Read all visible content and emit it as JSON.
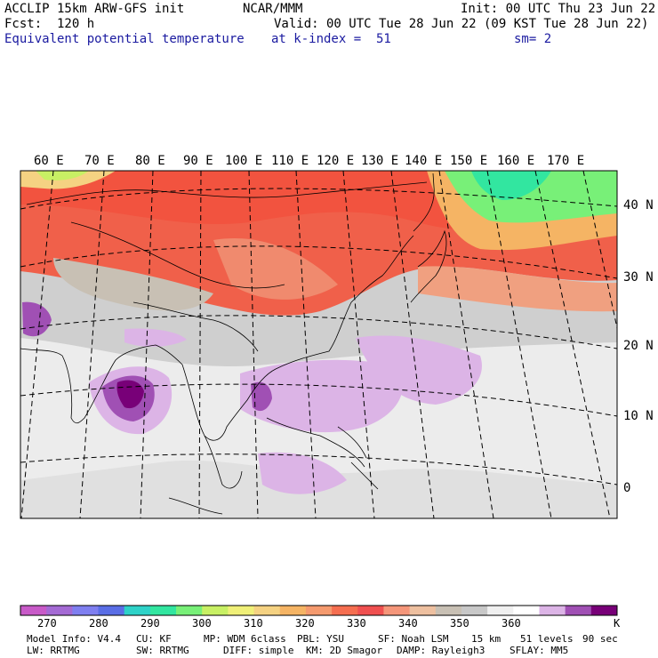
{
  "header": {
    "line1_left": "ACCLIP 15km ARW-GFS init",
    "line1_center": "NCAR/MMM",
    "line1_right": "Init: 00 UTC Thu 23 Jun 22",
    "line2_left": "Fcst:  120 h",
    "line2_right": "Valid: 00 UTC Tue 28 Jun 22 (09 KST Tue 28 Jun 22)",
    "line3_left": "Equivalent potential temperature",
    "line3_center": "at k-index =  51",
    "line3_right": "sm= 2"
  },
  "map": {
    "lon_labels": [
      "60 E",
      "70 E",
      "80 E",
      "90 E",
      "100 E",
      "110 E",
      "120 E",
      "130 E",
      "140 E",
      "150 E",
      "160 E",
      "170 E"
    ],
    "lat_labels": [
      "40 N",
      "30 N",
      "20 N",
      "10 N",
      "0"
    ]
  },
  "colorbar": {
    "unit": "K",
    "labels": [
      "270",
      "280",
      "290",
      "300",
      "310",
      "320",
      "330",
      "340",
      "350",
      "360"
    ],
    "colors": [
      "#c85ac8",
      "#a46ad4",
      "#7f7ff0",
      "#5a6ee6",
      "#2ed2c8",
      "#32e6a0",
      "#78f078",
      "#c8f064",
      "#f0f078",
      "#f5d282",
      "#f5b464",
      "#f59a6e",
      "#f56e50",
      "#f05050",
      "#f5967a",
      "#eec0a0",
      "#c8c0b4",
      "#c8c8c8",
      "#f0f0f0",
      "#ffffff",
      "#dcb4e6",
      "#a050b4",
      "#780078"
    ]
  },
  "footer": {
    "line1": [
      "Model Info: V4.4",
      "CU: KF",
      "MP: WDM 6class",
      "PBL: YSU",
      "SF: Noah LSM",
      "15 km",
      "51 levels",
      "90 sec"
    ],
    "line2": [
      "LW: RRTMG",
      "SW: RRTMG",
      "DIFF: simple",
      "KM: 2D Smagor",
      "DAMP: Rayleigh3",
      "SFLAY: MM5"
    ]
  }
}
